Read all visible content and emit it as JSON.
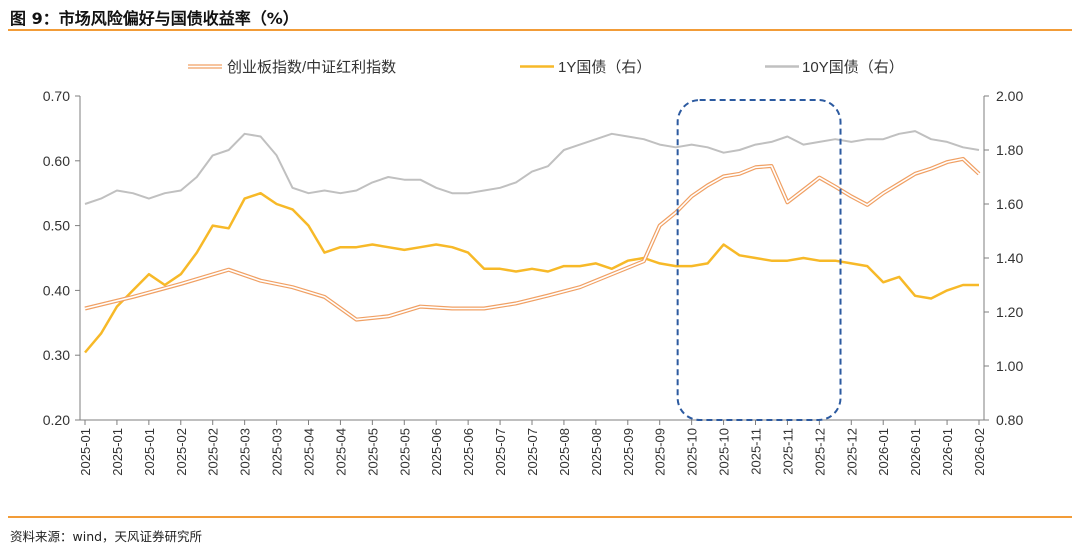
{
  "figure": {
    "title": "图 9：市场风险偏好与国债收益率（%）",
    "source": "资料来源：wind，天风证券研究所"
  },
  "colors": {
    "accent": "#f29c38",
    "ratio": "#f0a064",
    "y1": "#f7b928",
    "y10": "#c0c0c0",
    "highlight_box": "#2c5aa0",
    "axis": "#7f7f7f"
  },
  "chart_data": {
    "type": "line",
    "title": "市场风险偏好与国债收益率（%）",
    "legend_position": "top",
    "grid": false,
    "xlabel": "",
    "ylabel_left": "",
    "ylabel_right": "",
    "left_axis": {
      "min": 0.2,
      "max": 0.7,
      "ticks": [
        "0.20",
        "0.30",
        "0.40",
        "0.50",
        "0.60",
        "0.70"
      ]
    },
    "right_axis": {
      "min": 0.8,
      "max": 2.0,
      "ticks": [
        "0.80",
        "1.00",
        "1.20",
        "1.40",
        "1.60",
        "1.80",
        "2.00"
      ]
    },
    "x_ticks": [
      "2025-01",
      "2025-01",
      "2025-01",
      "2025-02",
      "2025-02",
      "2025-03",
      "2025-03",
      "2025-04",
      "2025-04",
      "2025-05",
      "2025-05",
      "2025-06",
      "2025-06",
      "2025-07",
      "2025-07",
      "2025-08",
      "2025-08",
      "2025-09",
      "2025-09",
      "2025-10",
      "2025-10",
      "2025-11",
      "2025-11",
      "2025-12",
      "2025-12",
      "2026-01",
      "2026-01",
      "2026-01",
      "2026-02"
    ],
    "series": [
      {
        "name": "创业板指数/中证红利指数",
        "axis": "left",
        "style": "double-line",
        "x": [
          0,
          1.5,
          3,
          4.5,
          5.5,
          6.5,
          7.5,
          8.5,
          9.5,
          10.5,
          11.5,
          12.5,
          13.5,
          14.5,
          15.5,
          16.5,
          17.5,
          18,
          18.5,
          19,
          19.5,
          20,
          20.5,
          21,
          21.5,
          22,
          22.5,
          23,
          23.5,
          24,
          24.5,
          25,
          25.5,
          26,
          26.5,
          27,
          27.5,
          28
        ],
        "values": [
          0.372,
          0.39,
          0.41,
          0.432,
          0.415,
          0.405,
          0.39,
          0.355,
          0.36,
          0.375,
          0.372,
          0.372,
          0.38,
          0.392,
          0.405,
          0.425,
          0.445,
          0.5,
          0.52,
          0.545,
          0.562,
          0.576,
          0.58,
          0.59,
          0.592,
          0.536,
          0.555,
          0.574,
          0.56,
          0.545,
          0.532,
          0.55,
          0.565,
          0.58,
          0.588,
          0.598,
          0.603,
          0.58
        ]
      },
      {
        "name": "1Y国债（右）",
        "axis": "right",
        "x": [
          0,
          0.5,
          1,
          1.5,
          2,
          2.5,
          3,
          3.5,
          4,
          4.5,
          5,
          5.5,
          6,
          6.5,
          7,
          7.5,
          8,
          8.5,
          9,
          9.5,
          10,
          10.5,
          11,
          11.5,
          12,
          12.5,
          13,
          13.5,
          14,
          14.5,
          15,
          15.5,
          16,
          16.5,
          17,
          17.5,
          18,
          18.5,
          19,
          19.5,
          20,
          20.5,
          21,
          21.5,
          22,
          22.5,
          23,
          23.5,
          24,
          24.5,
          25,
          25.5,
          26,
          26.5,
          27,
          27.5,
          28
        ],
        "values": [
          1.05,
          1.12,
          1.22,
          1.28,
          1.34,
          1.3,
          1.34,
          1.42,
          1.52,
          1.51,
          1.62,
          1.64,
          1.6,
          1.58,
          1.52,
          1.42,
          1.44,
          1.44,
          1.45,
          1.44,
          1.43,
          1.44,
          1.45,
          1.44,
          1.42,
          1.36,
          1.36,
          1.35,
          1.36,
          1.35,
          1.37,
          1.37,
          1.38,
          1.36,
          1.39,
          1.4,
          1.38,
          1.37,
          1.37,
          1.38,
          1.45,
          1.41,
          1.4,
          1.39,
          1.39,
          1.4,
          1.39,
          1.39,
          1.38,
          1.37,
          1.31,
          1.33,
          1.26,
          1.25,
          1.28,
          1.3,
          1.3
        ]
      },
      {
        "name": "10Y国债（右）",
        "axis": "right",
        "x": [
          0,
          0.5,
          1,
          1.5,
          2,
          2.5,
          3,
          3.5,
          4,
          4.5,
          5,
          5.5,
          6,
          6.5,
          7,
          7.5,
          8,
          8.5,
          9,
          9.5,
          10,
          10.5,
          11,
          11.5,
          12,
          12.5,
          13,
          13.5,
          14,
          14.5,
          15,
          15.5,
          16,
          16.5,
          17,
          17.5,
          18,
          18.5,
          19,
          19.5,
          20,
          20.5,
          21,
          21.5,
          22,
          22.5,
          23,
          23.5,
          24,
          24.5,
          25,
          25.5,
          26,
          26.5,
          27,
          27.5,
          28
        ],
        "values": [
          1.6,
          1.62,
          1.65,
          1.64,
          1.62,
          1.64,
          1.65,
          1.7,
          1.78,
          1.8,
          1.86,
          1.85,
          1.78,
          1.66,
          1.64,
          1.65,
          1.64,
          1.65,
          1.68,
          1.7,
          1.69,
          1.69,
          1.66,
          1.64,
          1.64,
          1.65,
          1.66,
          1.68,
          1.72,
          1.74,
          1.8,
          1.82,
          1.84,
          1.86,
          1.85,
          1.84,
          1.82,
          1.81,
          1.82,
          1.81,
          1.79,
          1.8,
          1.82,
          1.83,
          1.85,
          1.82,
          1.83,
          1.84,
          1.83,
          1.84,
          1.84,
          1.86,
          1.87,
          1.84,
          1.83,
          1.81,
          1.8
        ]
      }
    ],
    "annotations": [
      {
        "type": "dashed-rounded-rectangle",
        "x_from": 19,
        "x_to": 23.6,
        "note": "2025-10 to 2025-12 highlighted period"
      }
    ]
  }
}
